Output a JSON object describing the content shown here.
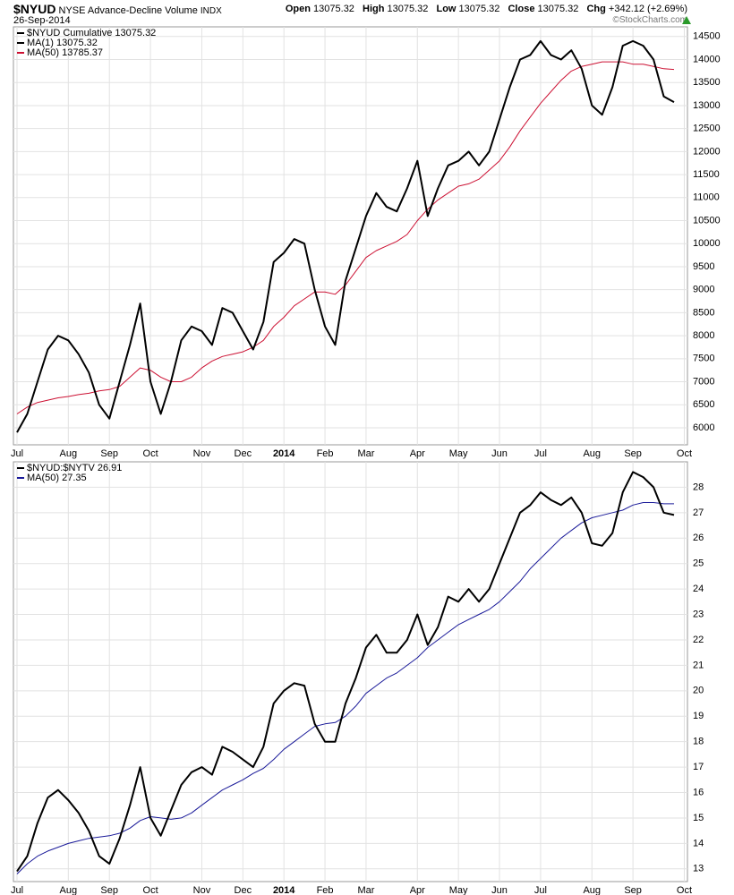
{
  "header": {
    "symbol": "$NYUD",
    "name": "NYSE Advance-Decline Volume",
    "exchange": "INDX",
    "date": "26-Sep-2014",
    "quote": [
      {
        "label": "Open",
        "value": 13075.32
      },
      {
        "label": "High",
        "value": 13075.32
      },
      {
        "label": "Low",
        "value": 13075.32
      },
      {
        "label": "Close",
        "value": 13075.32
      },
      {
        "label": "Chg",
        "value": "+342.12 (+2.69%)"
      }
    ],
    "credit": "©StockCharts.com"
  },
  "chart_data": [
    {
      "type": "line",
      "label": "$NYUD Cumulative 13075.32",
      "categories": [
        "Jul",
        null,
        null,
        null,
        null,
        "Aug",
        null,
        null,
        null,
        "Sep",
        null,
        null,
        null,
        "Oct",
        null,
        null,
        null,
        null,
        "Nov",
        null,
        null,
        null,
        "Dec",
        null,
        null,
        null,
        "2014",
        null,
        null,
        null,
        "Feb",
        null,
        null,
        null,
        "Mar",
        null,
        null,
        null,
        null,
        "Apr",
        null,
        null,
        null,
        "May",
        null,
        null,
        null,
        "Jun",
        null,
        null,
        null,
        "Jul",
        null,
        null,
        null,
        null,
        "Aug",
        null,
        null,
        null,
        "Sep",
        null,
        null,
        null,
        null,
        "Oct"
      ],
      "series": [
        {
          "name": "MA(1) 13075.32",
          "color": "#000000",
          "values": [
            5900,
            6300,
            7000,
            7700,
            8000,
            7900,
            7600,
            7200,
            6500,
            6200,
            7000,
            7800,
            8700,
            7000,
            6300,
            7000,
            7900,
            8200,
            8100,
            7800,
            8600,
            8500,
            8100,
            7700,
            8300,
            9600,
            9800,
            10100,
            10000,
            9000,
            8200,
            7800,
            9200,
            9900,
            10600,
            11100,
            10800,
            10700,
            11200,
            11800,
            10600,
            11200,
            11700,
            11800,
            12000,
            11700,
            12000,
            12700,
            13400,
            14000,
            14100,
            14400,
            14100,
            14000,
            14200,
            13800,
            13000,
            12800,
            13400,
            14300,
            14400,
            14300,
            14000,
            13200,
            13075.32,
            null
          ]
        },
        {
          "name": "MA(50) 13785.37",
          "color": "#cc1133",
          "values": [
            6300,
            6450,
            6550,
            6600,
            6650,
            6680,
            6720,
            6750,
            6800,
            6830,
            6900,
            7100,
            7300,
            7250,
            7100,
            7000,
            7000,
            7100,
            7300,
            7450,
            7550,
            7600,
            7650,
            7750,
            7900,
            8200,
            8400,
            8650,
            8800,
            8950,
            8950,
            8900,
            9100,
            9400,
            9700,
            9850,
            9950,
            10050,
            10200,
            10500,
            10750,
            10950,
            11100,
            11250,
            11300,
            11400,
            11600,
            11800,
            12100,
            12450,
            12750,
            13050,
            13300,
            13550,
            13750,
            13850,
            13900,
            13950,
            13950,
            13950,
            13900,
            13900,
            13850,
            13800,
            13785.37,
            null
          ]
        }
      ],
      "ylim": [
        5630,
        14710
      ],
      "yticks": [
        6000,
        6500,
        7000,
        7500,
        8000,
        8500,
        9000,
        9500,
        10000,
        10500,
        11000,
        11500,
        12000,
        12500,
        13000,
        13500,
        14000,
        14500
      ],
      "grid": true
    },
    {
      "type": "line",
      "label": "$NYUD:$NYTV 26.91",
      "categories": [
        "Jul",
        null,
        null,
        null,
        null,
        "Aug",
        null,
        null,
        null,
        "Sep",
        null,
        null,
        null,
        "Oct",
        null,
        null,
        null,
        null,
        "Nov",
        null,
        null,
        null,
        "Dec",
        null,
        null,
        null,
        "2014",
        null,
        null,
        null,
        "Feb",
        null,
        null,
        null,
        "Mar",
        null,
        null,
        null,
        null,
        "Apr",
        null,
        null,
        null,
        "May",
        null,
        null,
        null,
        "Jun",
        null,
        null,
        null,
        "Jul",
        null,
        null,
        null,
        null,
        "Aug",
        null,
        null,
        null,
        "Sep",
        null,
        null,
        null,
        null,
        "Oct"
      ],
      "series": [
        {
          "color": "#000000",
          "values": [
            12.9,
            13.5,
            14.8,
            15.8,
            16.1,
            15.7,
            15.2,
            14.5,
            13.5,
            13.2,
            14.2,
            15.5,
            17.0,
            15.0,
            14.3,
            15.3,
            16.3,
            16.8,
            17.0,
            16.7,
            17.8,
            17.6,
            17.3,
            17.0,
            17.8,
            19.5,
            20.0,
            20.3,
            20.2,
            18.7,
            18.0,
            18.0,
            19.5,
            20.5,
            21.7,
            22.2,
            21.5,
            21.5,
            22.0,
            23.0,
            21.8,
            22.5,
            23.7,
            23.5,
            24.0,
            23.5,
            24.0,
            25.0,
            26.0,
            27.0,
            27.3,
            27.8,
            27.5,
            27.3,
            27.6,
            27.0,
            25.8,
            25.7,
            26.2,
            27.8,
            28.6,
            28.4,
            28.0,
            27.0,
            26.91,
            null
          ]
        },
        {
          "name": "MA(50) 27.35",
          "color": "#1a1a99",
          "values": [
            12.8,
            13.2,
            13.5,
            13.7,
            13.85,
            14.0,
            14.1,
            14.2,
            14.25,
            14.3,
            14.4,
            14.6,
            14.9,
            15.05,
            15.0,
            14.95,
            15.0,
            15.2,
            15.5,
            15.8,
            16.1,
            16.3,
            16.5,
            16.75,
            16.95,
            17.3,
            17.7,
            18.0,
            18.3,
            18.6,
            18.7,
            18.75,
            19.0,
            19.4,
            19.9,
            20.2,
            20.5,
            20.7,
            21.0,
            21.3,
            21.7,
            22.0,
            22.3,
            22.6,
            22.8,
            23.0,
            23.2,
            23.5,
            23.9,
            24.3,
            24.8,
            25.2,
            25.6,
            26.0,
            26.3,
            26.6,
            26.8,
            26.9,
            27.0,
            27.1,
            27.3,
            27.4,
            27.4,
            27.35,
            27.35,
            null
          ]
        }
      ],
      "ylim": [
        12.5,
        29
      ],
      "yticks": [
        13,
        14,
        15,
        16,
        17,
        18,
        19,
        20,
        21,
        22,
        23,
        24,
        25,
        26,
        27,
        28
      ],
      "grid": true
    }
  ]
}
